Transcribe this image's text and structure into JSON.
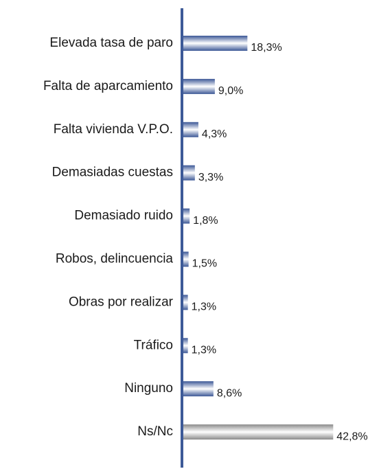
{
  "chart_data": {
    "type": "hbar",
    "categories": [
      "Elevada tasa de paro",
      "Falta de aparcamiento",
      "Falta vivienda V.P.O.",
      "Demasiadas cuestas",
      "Demasiado ruido",
      "Robos, delincuencia",
      "Obras por realizar",
      "Tráfico",
      "Ninguno",
      "Ns/Nc"
    ],
    "values": [
      18.3,
      9.0,
      4.3,
      3.3,
      1.8,
      1.5,
      1.3,
      1.3,
      8.6,
      42.8
    ],
    "value_labels": [
      "18,3%",
      "9,0%",
      "4,3%",
      "3,3%",
      "1,8%",
      "1,5%",
      "1,3%",
      "1,3%",
      "8,6%",
      "42,8%"
    ],
    "colors": [
      "#3b5796",
      "#3b5796",
      "#3b5796",
      "#3b5796",
      "#3b5796",
      "#3b5796",
      "#3b5796",
      "#3b5796",
      "#3b5796",
      "#8a8a8a"
    ]
  }
}
